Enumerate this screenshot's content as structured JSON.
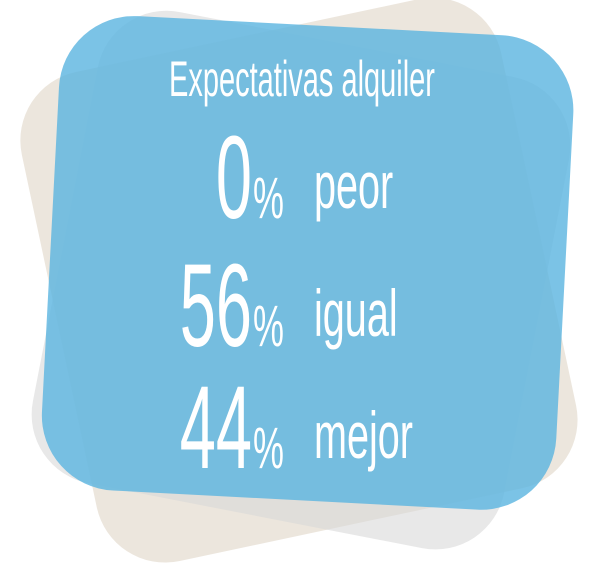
{
  "title": "Expectativas alquiler",
  "items": [
    {
      "value": 0,
      "unit": "%",
      "label": "peor"
    },
    {
      "value": 56,
      "unit": "%",
      "label": "igual"
    },
    {
      "value": 44,
      "unit": "%",
      "label": "mejor"
    }
  ]
}
